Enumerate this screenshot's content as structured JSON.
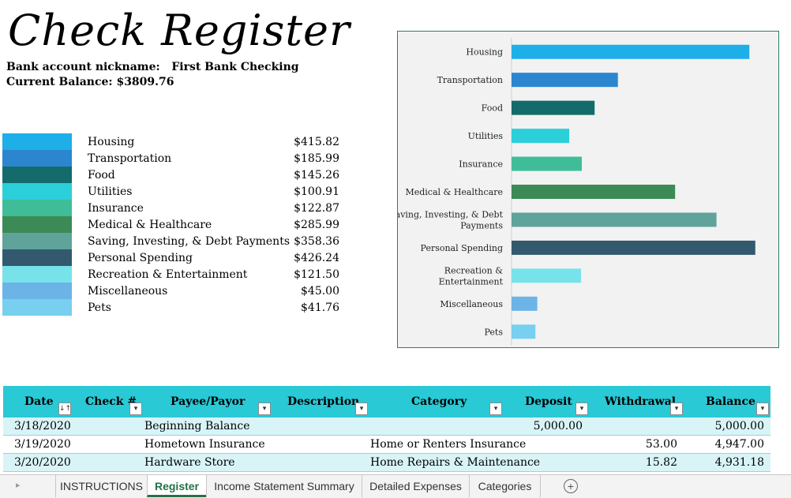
{
  "title": "Check Register",
  "account": {
    "nickname_label": "Bank account nickname:",
    "nickname_value": "First Bank Checking",
    "balance_label": "Current Balance:",
    "balance_value": "$3809.76"
  },
  "categories": [
    {
      "label": "Housing",
      "amount": "$415.82",
      "color": "#1eaee8"
    },
    {
      "label": "Transportation",
      "amount": "$185.99",
      "color": "#2b86cf"
    },
    {
      "label": "Food",
      "amount": "$145.26",
      "color": "#146b6b"
    },
    {
      "label": "Utilities",
      "amount": "$100.91",
      "color": "#2bcfd9"
    },
    {
      "label": "Insurance",
      "amount": "$122.87",
      "color": "#3fbd99"
    },
    {
      "label": "Medical & Healthcare",
      "amount": "$285.99",
      "color": "#3c8a55"
    },
    {
      "label": "Saving, Investing, & Debt Payments",
      "amount": "$358.36",
      "color": "#5fa39a"
    },
    {
      "label": "Personal Spending",
      "amount": "$426.24",
      "color": "#33596e"
    },
    {
      "label": "Recreation & Entertainment",
      "amount": "$121.50",
      "color": "#78e2ea"
    },
    {
      "label": "Miscellaneous",
      "amount": "$45.00",
      "color": "#6db4e6"
    },
    {
      "label": "Pets",
      "amount": "$41.76",
      "color": "#78cff0"
    }
  ],
  "chart_data": {
    "type": "bar",
    "orientation": "horizontal",
    "categories": [
      "Housing",
      "Transportation",
      "Food",
      "Utilities",
      "Insurance",
      "Medical & Healthcare",
      "Saving, Investing, & Debt Payments",
      "Personal Spending",
      "Recreation & Entertainment",
      "Miscellaneous",
      "Pets"
    ],
    "values": [
      415.82,
      185.99,
      145.26,
      100.91,
      122.87,
      285.99,
      358.36,
      426.24,
      121.5,
      45.0,
      41.76
    ],
    "colors": [
      "#1eaee8",
      "#2b86cf",
      "#146b6b",
      "#2bcfd9",
      "#3fbd99",
      "#3c8a55",
      "#5fa39a",
      "#33596e",
      "#78e2ea",
      "#6db4e6",
      "#78cff0"
    ],
    "title": "",
    "xlabel": "",
    "ylabel": "",
    "xlim": [
      0,
      450
    ],
    "grid": false
  },
  "table": {
    "headers": [
      "Date",
      "Check #",
      "Payee/Payor",
      "Description",
      "Category",
      "Deposit",
      "Withdrawal",
      "Balance"
    ],
    "rows": [
      {
        "date": "3/18/2020",
        "check": "",
        "payee": "Beginning Balance",
        "description": "",
        "category": "",
        "deposit": "5,000.00",
        "withdrawal": "",
        "balance": "5,000.00"
      },
      {
        "date": "3/19/2020",
        "check": "",
        "payee": "Hometown Insurance",
        "description": "",
        "category": "Home or Renters Insurance",
        "deposit": "",
        "withdrawal": "53.00",
        "balance": "4,947.00"
      },
      {
        "date": "3/20/2020",
        "check": "",
        "payee": "Hardware Store",
        "description": "",
        "category": "Home Repairs & Maintenance",
        "deposit": "",
        "withdrawal": "15.82",
        "balance": "4,931.18"
      }
    ]
  },
  "sheet_tabs": [
    "INSTRUCTIONS",
    "Register",
    "Income Statement Summary",
    "Detailed Expenses",
    "Categories"
  ],
  "active_tab": "Register"
}
